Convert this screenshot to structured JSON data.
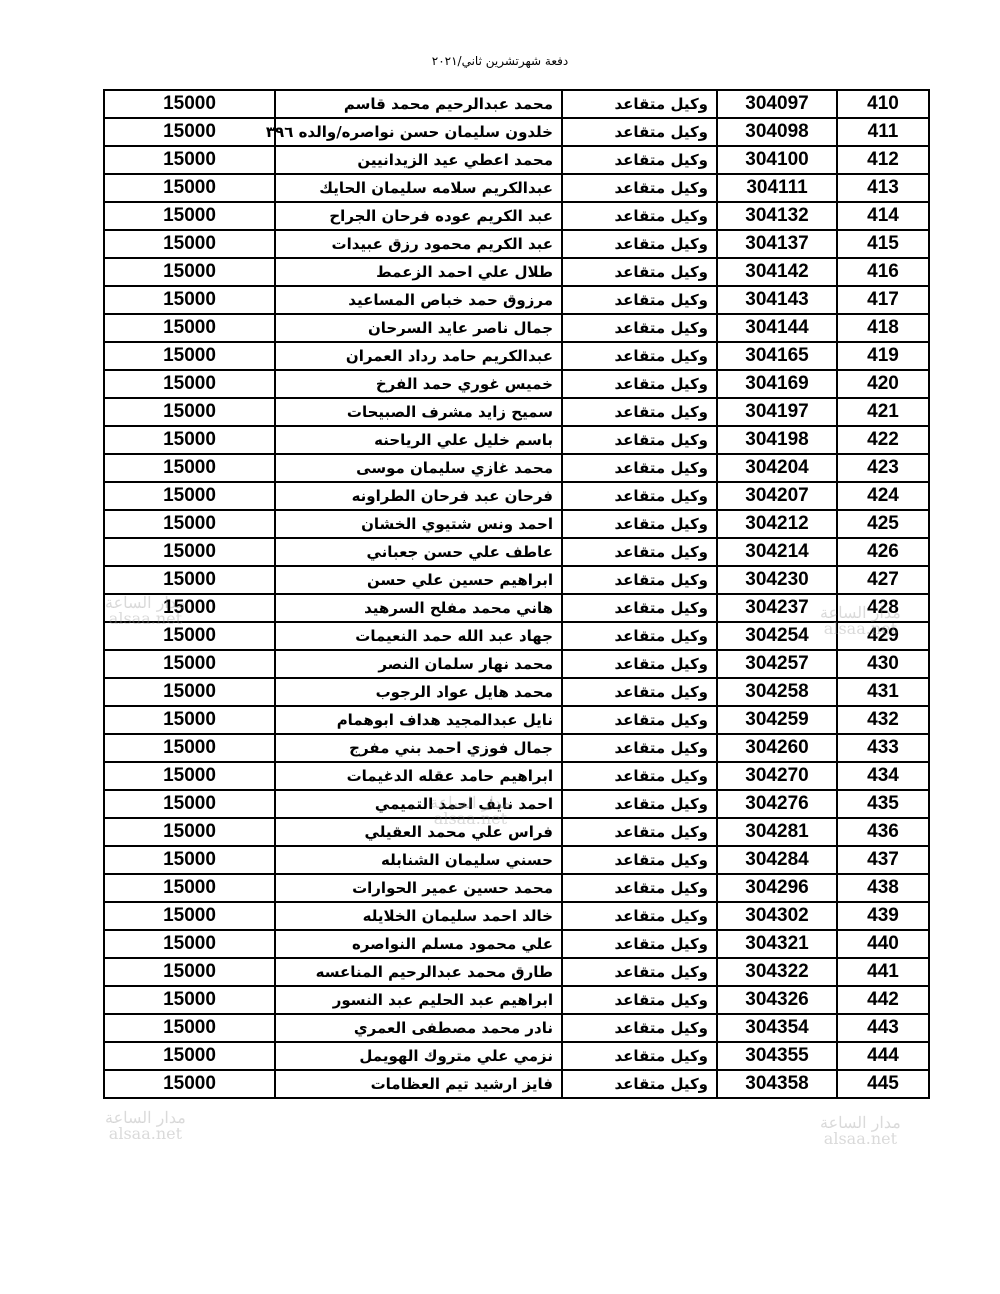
{
  "header": {
    "title": "دفعة شهرتشرين ثاني/٢٠٢١"
  },
  "watermark": {
    "line1": "مدار الساعة",
    "line2": "alsaa.net"
  },
  "table": {
    "rows": [
      {
        "index": "410",
        "number": "304097",
        "rank": "وكيل متقاعد",
        "name": "محمد عبدالرحيم محمد قاسم",
        "amount": "15000"
      },
      {
        "index": "411",
        "number": "304098",
        "rank": "وكيل متقاعد",
        "name": "خلدون سليمان حسن نواصره/والده ٣٩٦",
        "amount": "15000"
      },
      {
        "index": "412",
        "number": "304100",
        "rank": "وكيل متقاعد",
        "name": "محمد اعطي عيد الزيدانيين",
        "amount": "15000"
      },
      {
        "index": "413",
        "number": "304111",
        "rank": "وكيل متقاعد",
        "name": "عبدالكريم سلامه سليمان الحايك",
        "amount": "15000"
      },
      {
        "index": "414",
        "number": "304132",
        "rank": "وكيل متقاعد",
        "name": "عبد الكريم عوده فرحان الجراح",
        "amount": "15000"
      },
      {
        "index": "415",
        "number": "304137",
        "rank": "وكيل متقاعد",
        "name": "عبد الكريم محمود رزق عبيدات",
        "amount": "15000"
      },
      {
        "index": "416",
        "number": "304142",
        "rank": "وكيل متقاعد",
        "name": "طلال علي احمد الزعمط",
        "amount": "15000"
      },
      {
        "index": "417",
        "number": "304143",
        "rank": "وكيل متقاعد",
        "name": "مرزوق حمد خباص المساعيد",
        "amount": "15000"
      },
      {
        "index": "418",
        "number": "304144",
        "rank": "وكيل متقاعد",
        "name": "جمال ناصر عايد السرحان",
        "amount": "15000"
      },
      {
        "index": "419",
        "number": "304165",
        "rank": "وكيل متقاعد",
        "name": "عبدالكريم حامد رداد العمران",
        "amount": "15000"
      },
      {
        "index": "420",
        "number": "304169",
        "rank": "وكيل متقاعد",
        "name": "خميس غوري حمد الفرخ",
        "amount": "15000"
      },
      {
        "index": "421",
        "number": "304197",
        "rank": "وكيل متقاعد",
        "name": "سميح زايد مشرف الصبيحات",
        "amount": "15000"
      },
      {
        "index": "422",
        "number": "304198",
        "rank": "وكيل متقاعد",
        "name": "باسم خليل علي الرياحنه",
        "amount": "15000"
      },
      {
        "index": "423",
        "number": "304204",
        "rank": "وكيل متقاعد",
        "name": "محمد غازي سليمان موسى",
        "amount": "15000"
      },
      {
        "index": "424",
        "number": "304207",
        "rank": "وكيل متقاعد",
        "name": "فرحان عبد فرحان الطراونه",
        "amount": "15000"
      },
      {
        "index": "425",
        "number": "304212",
        "rank": "وكيل متقاعد",
        "name": "احمد ونس شتيوي الخشان",
        "amount": "15000"
      },
      {
        "index": "426",
        "number": "304214",
        "rank": "وكيل متقاعد",
        "name": "عاطف علي حسن جعباني",
        "amount": "15000"
      },
      {
        "index": "427",
        "number": "304230",
        "rank": "وكيل متقاعد",
        "name": "ابراهيم حسين علي حسن",
        "amount": "15000"
      },
      {
        "index": "428",
        "number": "304237",
        "rank": "وكيل متقاعد",
        "name": "هاني محمد مفلح السرهيد",
        "amount": "15000"
      },
      {
        "index": "429",
        "number": "304254",
        "rank": "وكيل متقاعد",
        "name": "جهاد عبد الله حمد النعيمات",
        "amount": "15000"
      },
      {
        "index": "430",
        "number": "304257",
        "rank": "وكيل متقاعد",
        "name": "محمد نهار سلمان النصر",
        "amount": "15000"
      },
      {
        "index": "431",
        "number": "304258",
        "rank": "وكيل متقاعد",
        "name": "محمد هايل عواد الرجوب",
        "amount": "15000"
      },
      {
        "index": "432",
        "number": "304259",
        "rank": "وكيل متقاعد",
        "name": "نايل عبدالمجيد هداف ابوهمام",
        "amount": "15000"
      },
      {
        "index": "433",
        "number": "304260",
        "rank": "وكيل متقاعد",
        "name": "جمال فوزي احمد بني مفرج",
        "amount": "15000"
      },
      {
        "index": "434",
        "number": "304270",
        "rank": "وكيل متقاعد",
        "name": "ابراهيم حامد عقله الدغيمات",
        "amount": "15000"
      },
      {
        "index": "435",
        "number": "304276",
        "rank": "وكيل متقاعد",
        "name": "احمد نايف احمد التميمي",
        "amount": "15000"
      },
      {
        "index": "436",
        "number": "304281",
        "rank": "وكيل متقاعد",
        "name": "فراس علي محمد العقيلي",
        "amount": "15000"
      },
      {
        "index": "437",
        "number": "304284",
        "rank": "وكيل متقاعد",
        "name": "حسني سليمان الشنابله",
        "amount": "15000"
      },
      {
        "index": "438",
        "number": "304296",
        "rank": "وكيل متقاعد",
        "name": "محمد حسين عمير الحوارات",
        "amount": "15000"
      },
      {
        "index": "439",
        "number": "304302",
        "rank": "وكيل متقاعد",
        "name": "خالد احمد سليمان الخلايله",
        "amount": "15000"
      },
      {
        "index": "440",
        "number": "304321",
        "rank": "وكيل متقاعد",
        "name": "علي محمود مسلم النواصره",
        "amount": "15000"
      },
      {
        "index": "441",
        "number": "304322",
        "rank": "وكيل متقاعد",
        "name": "طارق محمد عبدالرحيم المناعسه",
        "amount": "15000"
      },
      {
        "index": "442",
        "number": "304326",
        "rank": "وكيل متقاعد",
        "name": "ابراهيم عبد الحليم عبد النسور",
        "amount": "15000"
      },
      {
        "index": "443",
        "number": "304354",
        "rank": "وكيل متقاعد",
        "name": "نادر محمد مصطفى العمري",
        "amount": "15000"
      },
      {
        "index": "444",
        "number": "304355",
        "rank": "وكيل متقاعد",
        "name": "نزمي علي متروك الهويمل",
        "amount": "15000"
      },
      {
        "index": "445",
        "number": "304358",
        "rank": "وكيل متقاعد",
        "name": "فايز ارشيد تيم العظامات",
        "amount": "15000"
      }
    ]
  }
}
